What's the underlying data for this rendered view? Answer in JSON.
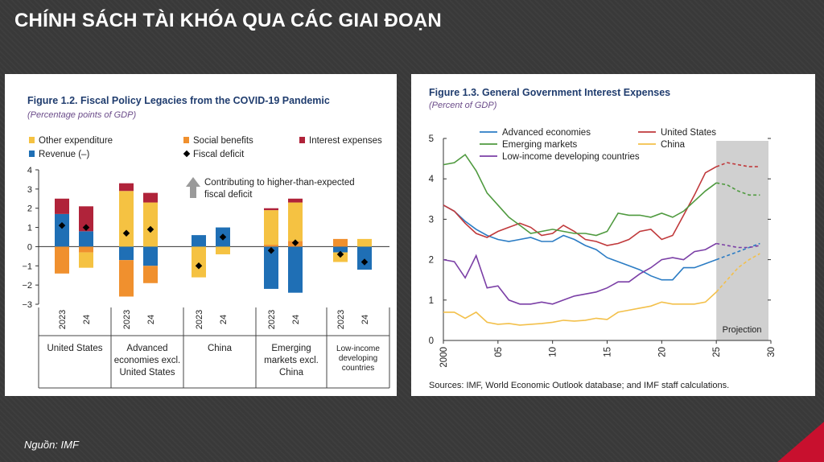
{
  "slide": {
    "title": "CHÍNH SÁCH TÀI KHÓA QUA CÁC GIAI ĐOẠN",
    "source_note": "Nguồn: IMF"
  },
  "colors": {
    "other_expenditure": "#f5c242",
    "social_benefits": "#f0902e",
    "interest_expenses": "#b0233a",
    "revenue": "#1f6fb5",
    "fiscal_deficit": "#000000",
    "advanced": "#2b7cc4",
    "us": "#c0393b",
    "emerging": "#4f9a3f",
    "china": "#f3c04a",
    "lic": "#7b3fa6",
    "projection_shade": "#d0d0d0"
  },
  "chart_data": [
    {
      "type": "bar",
      "title": "Figure 1.2. Fiscal Policy Legacies from the COVID-19 Pandemic",
      "subtitle": "(Percentage points of GDP)",
      "ylim": [
        -3,
        4
      ],
      "yticks": [
        "4",
        "3",
        "2",
        "1",
        "0",
        "−1",
        "−2",
        "−3"
      ],
      "legend": [
        "Other expenditure",
        "Social benefits",
        "Interest expenses",
        "Revenue (–)",
        "Fiscal deficit"
      ],
      "annotation": [
        "Contributing to higher-than-expected",
        "fiscal deficit"
      ],
      "groups": [
        {
          "label": [
            "United States"
          ],
          "bars": [
            {
              "year": "2023",
              "revenue": 1.7,
              "social": -1.4,
              "other": 0.0,
              "interest": 0.8,
              "deficit": 1.1
            },
            {
              "year": "24",
              "revenue": 0.8,
              "social": -0.3,
              "other": -0.8,
              "interest": 1.3,
              "deficit": 1.0
            }
          ]
        },
        {
          "label": [
            "Advanced",
            "economies excl.",
            "United States"
          ],
          "bars": [
            {
              "year": "2023",
              "revenue": -0.7,
              "social": -1.9,
              "other": 2.9,
              "interest": 0.4,
              "deficit": 0.7
            },
            {
              "year": "24",
              "revenue": -1.0,
              "social": -0.9,
              "other": 2.3,
              "interest": 0.5,
              "deficit": 0.9
            }
          ]
        },
        {
          "label": [
            "China"
          ],
          "bars": [
            {
              "year": "2023",
              "revenue": 0.6,
              "social": 0.0,
              "other": -1.6,
              "interest": 0.0,
              "deficit": -1.0
            },
            {
              "year": "24",
              "revenue": 1.0,
              "social": 0.0,
              "other": -0.4,
              "interest": 0.0,
              "deficit": 0.5
            }
          ]
        },
        {
          "label": [
            "Emerging",
            "markets excl.",
            "China"
          ],
          "bars": [
            {
              "year": "2023",
              "revenue": -2.2,
              "social": 0.1,
              "other": 1.8,
              "interest": 0.1,
              "deficit": -0.2
            },
            {
              "year": "24",
              "revenue": -2.4,
              "social": 0.3,
              "other": 2.0,
              "interest": 0.2,
              "deficit": 0.2
            }
          ]
        },
        {
          "label": [
            "Low-income",
            "developing",
            "countries"
          ],
          "bars": [
            {
              "year": "2023",
              "revenue": -0.3,
              "social": 0.4,
              "other": -0.5,
              "interest": 0.0,
              "deficit": -0.4
            },
            {
              "year": "24",
              "revenue": -1.2,
              "social": 0.0,
              "other": 0.4,
              "interest": 0.0,
              "deficit": -0.8
            }
          ]
        }
      ]
    },
    {
      "type": "line",
      "title": "Figure 1.3. General Government Interest Expenses",
      "subtitle": "(Percent of GDP)",
      "ylim": [
        0,
        5
      ],
      "xlim": [
        2000,
        2030
      ],
      "yticks": [
        "0",
        "1",
        "2",
        "3",
        "4",
        "5"
      ],
      "xticks": [
        "2000",
        "05",
        "10",
        "15",
        "20",
        "25",
        "30"
      ],
      "projection_label": "Projection",
      "projection_start": 2025,
      "source": "Sources: IMF, World Economic Outlook database; and IMF staff calculations.",
      "series": [
        {
          "name": "Advanced economies",
          "color": "advanced",
          "x": [
            2000,
            2001,
            2002,
            2003,
            2004,
            2005,
            2006,
            2007,
            2008,
            2009,
            2010,
            2011,
            2012,
            2013,
            2014,
            2015,
            2016,
            2017,
            2018,
            2019,
            2020,
            2021,
            2022,
            2023,
            2024,
            2025,
            2026,
            2027,
            2028,
            2029
          ],
          "y": [
            3.35,
            3.2,
            2.95,
            2.75,
            2.6,
            2.5,
            2.45,
            2.5,
            2.55,
            2.45,
            2.45,
            2.6,
            2.5,
            2.35,
            2.25,
            2.05,
            1.95,
            1.85,
            1.75,
            1.6,
            1.5,
            1.5,
            1.8,
            1.8,
            1.9,
            2.0,
            2.1,
            2.2,
            2.3,
            2.4
          ]
        },
        {
          "name": "United States",
          "color": "us",
          "x": [
            2000,
            2001,
            2002,
            2003,
            2004,
            2005,
            2006,
            2007,
            2008,
            2009,
            2010,
            2011,
            2012,
            2013,
            2014,
            2015,
            2016,
            2017,
            2018,
            2019,
            2020,
            2021,
            2022,
            2023,
            2024,
            2025,
            2026,
            2027,
            2028,
            2029
          ],
          "y": [
            3.35,
            3.2,
            2.9,
            2.65,
            2.55,
            2.7,
            2.8,
            2.9,
            2.8,
            2.6,
            2.65,
            2.85,
            2.7,
            2.5,
            2.45,
            2.35,
            2.4,
            2.5,
            2.7,
            2.75,
            2.5,
            2.6,
            3.1,
            3.6,
            4.15,
            4.3,
            4.4,
            4.35,
            4.3,
            4.3
          ]
        },
        {
          "name": "Emerging markets",
          "color": "emerging",
          "x": [
            2000,
            2001,
            2002,
            2003,
            2004,
            2005,
            2006,
            2007,
            2008,
            2009,
            2010,
            2011,
            2012,
            2013,
            2014,
            2015,
            2016,
            2017,
            2018,
            2019,
            2020,
            2021,
            2022,
            2023,
            2024,
            2025,
            2026,
            2027,
            2028,
            2029
          ],
          "y": [
            4.35,
            4.4,
            4.6,
            4.2,
            3.65,
            3.35,
            3.05,
            2.85,
            2.65,
            2.7,
            2.75,
            2.7,
            2.65,
            2.65,
            2.6,
            2.7,
            3.15,
            3.1,
            3.1,
            3.05,
            3.15,
            3.05,
            3.2,
            3.45,
            3.7,
            3.9,
            3.85,
            3.7,
            3.6,
            3.6
          ]
        },
        {
          "name": "China",
          "color": "china",
          "x": [
            2000,
            2001,
            2002,
            2003,
            2004,
            2005,
            2006,
            2007,
            2008,
            2009,
            2010,
            2011,
            2012,
            2013,
            2014,
            2015,
            2016,
            2017,
            2018,
            2019,
            2020,
            2021,
            2022,
            2023,
            2024,
            2025,
            2026,
            2027,
            2028,
            2029
          ],
          "y": [
            0.7,
            0.7,
            0.55,
            0.7,
            0.45,
            0.4,
            0.42,
            0.38,
            0.4,
            0.42,
            0.45,
            0.5,
            0.48,
            0.5,
            0.55,
            0.52,
            0.7,
            0.75,
            0.8,
            0.85,
            0.95,
            0.9,
            0.9,
            0.9,
            0.95,
            1.2,
            1.5,
            1.8,
            2.0,
            2.15
          ]
        },
        {
          "name": "Low-income developing countries",
          "color": "lic",
          "x": [
            2000,
            2001,
            2002,
            2003,
            2004,
            2005,
            2006,
            2007,
            2008,
            2009,
            2010,
            2011,
            2012,
            2013,
            2014,
            2015,
            2016,
            2017,
            2018,
            2019,
            2020,
            2021,
            2022,
            2023,
            2024,
            2025,
            2026,
            2027,
            2028,
            2029
          ],
          "y": [
            2.0,
            1.95,
            1.55,
            2.1,
            1.3,
            1.35,
            1.0,
            0.9,
            0.9,
            0.95,
            0.9,
            1.0,
            1.1,
            1.15,
            1.2,
            1.3,
            1.45,
            1.45,
            1.65,
            1.8,
            2.0,
            2.05,
            2.0,
            2.2,
            2.25,
            2.4,
            2.35,
            2.3,
            2.3,
            2.35
          ]
        }
      ]
    }
  ]
}
